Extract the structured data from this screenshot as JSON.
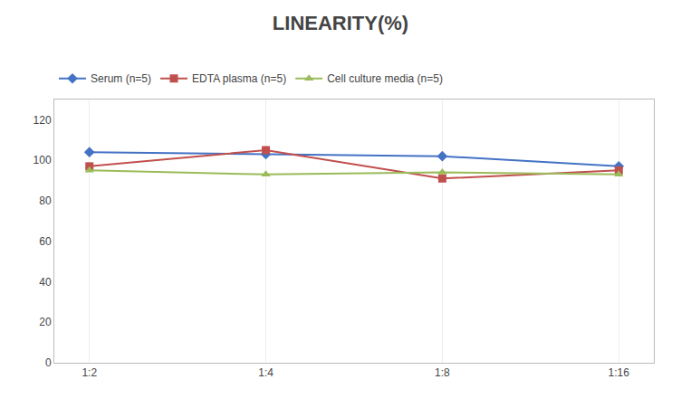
{
  "chart_data": {
    "type": "line",
    "title": "LINEARITY(%)",
    "categories": [
      "1:2",
      "1:4",
      "1:8",
      "1:16"
    ],
    "series": [
      {
        "name": "Serum (n=5)",
        "color": "#4472C4",
        "marker": "diamond",
        "values": [
          104,
          103,
          102,
          97
        ]
      },
      {
        "name": "EDTA plasma (n=5)",
        "color": "#C0504D",
        "marker": "square",
        "values": [
          97,
          105,
          91,
          95
        ]
      },
      {
        "name": "Cell culture media (n=5)",
        "color": "#9BBB59",
        "marker": "triangle-up",
        "values": [
          95,
          93,
          94,
          93
        ]
      }
    ],
    "ylim": [
      0,
      130
    ],
    "yticks": [
      0,
      20,
      40,
      60,
      80,
      100,
      120
    ],
    "grid": "x",
    "legend": "top left"
  }
}
